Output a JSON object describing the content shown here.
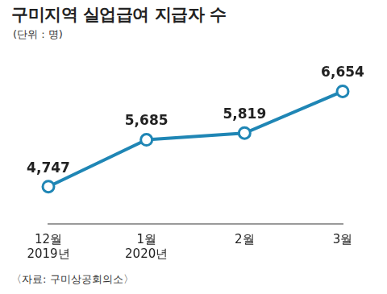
{
  "chart_data": {
    "type": "line",
    "title": "구미지역 실업급여 지급자 수",
    "subtitle": "(단위 : 명)",
    "source": "〈자료: 구미상공회의소〉",
    "categories": [
      "12월\n2019년",
      "1월\n2020년",
      "2월",
      "3월"
    ],
    "values": [
      4747,
      5685,
      5819,
      6654
    ],
    "value_labels": [
      "4,747",
      "5,685",
      "5,819",
      "6,654"
    ],
    "color": "#1f86b5",
    "marker": "circle",
    "ylim": [
      4000,
      7000
    ],
    "grid": false,
    "data_labels": true,
    "tick_labels": "x"
  }
}
